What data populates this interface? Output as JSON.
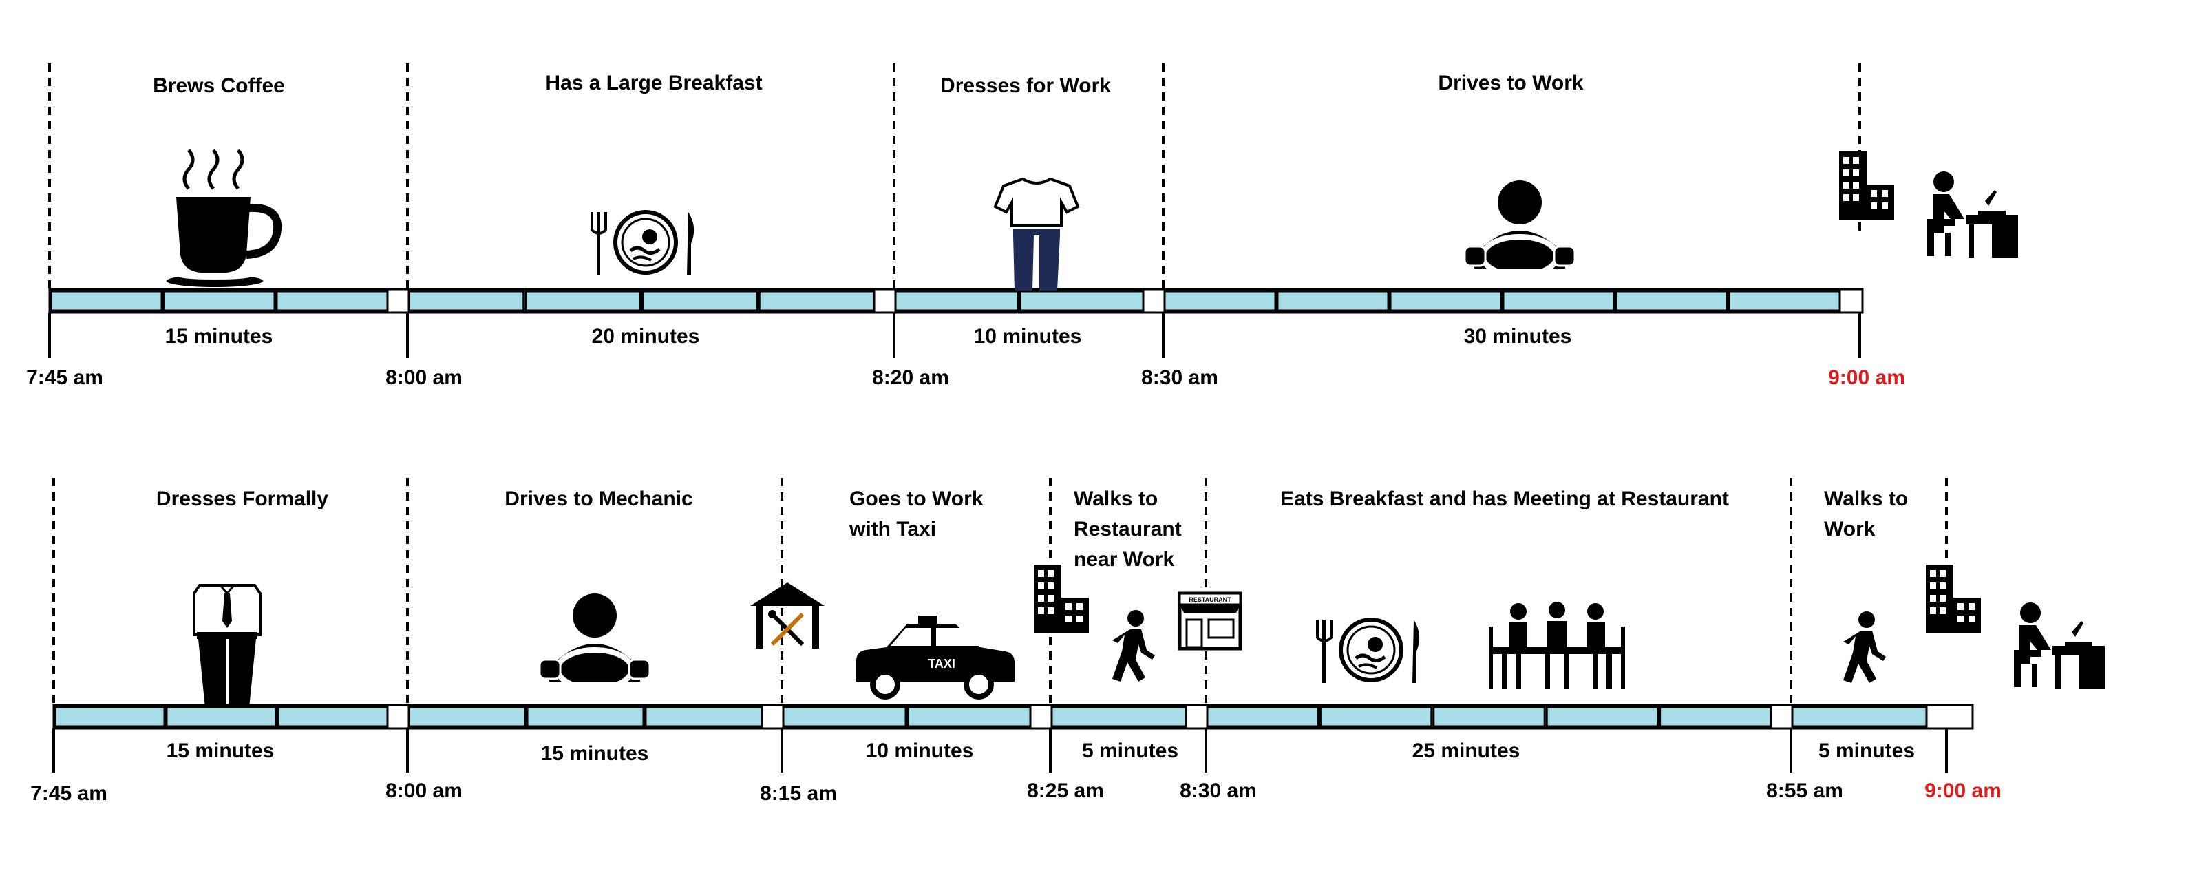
{
  "colors": {
    "bar_fill": "#a8dce6",
    "divider": "#000000",
    "text": "#000000",
    "arrival_time": "#e01b1b"
  },
  "rows": [
    {
      "name": "scenario-1",
      "segments": [
        {
          "label": "Brews Coffee",
          "duration": "15 minutes",
          "start_time": "7:45 am",
          "icon": "coffee-cup-icon",
          "blocks": 3
        },
        {
          "label": "Has a Large Breakfast",
          "duration": "20 minutes",
          "start_time": "8:00 am",
          "icon": "breakfast-plate-icon",
          "blocks": 4
        },
        {
          "label": "Dresses for Work",
          "duration": "10 minutes",
          "start_time": "8:20 am",
          "icon": "casual-clothes-icon",
          "blocks": 2
        },
        {
          "label": "Drives to Work",
          "duration": "30 minutes",
          "start_time": "8:30 am",
          "icon": "driver-icon",
          "blocks": 6
        }
      ],
      "end_time": "9:00 am",
      "end_icons": [
        "office-building-icon",
        "person-at-desk-icon"
      ]
    },
    {
      "name": "scenario-2",
      "segments": [
        {
          "label": "Dresses Formally",
          "duration": "15 minutes",
          "start_time": "7:45 am",
          "icon": "formal-clothes-icon",
          "blocks": 3
        },
        {
          "label": "Drives to Mechanic",
          "duration": "15 minutes",
          "start_time": "8:00 am",
          "icon": "driver-icon",
          "blocks": 3
        },
        {
          "label": "Goes to Work with Taxi",
          "duration": "10 minutes",
          "start_time": "8:15 am",
          "icon": "taxi-icon",
          "blocks": 2
        },
        {
          "label": "Walks to Restaurant near Work",
          "duration": "5 minutes",
          "start_time": "8:25 am",
          "icon": "walking-person-icon",
          "blocks": 1
        },
        {
          "label": "Eats Breakfast and has Meeting at Restaurant",
          "duration": "25 minutes",
          "start_time": "8:30 am",
          "icon": "breakfast-plate-icon",
          "blocks": 5
        },
        {
          "label": "Walks to Work",
          "duration": "5 minutes",
          "start_time": "8:55 am",
          "icon": "walking-person-icon",
          "blocks": 1
        }
      ],
      "end_time": "9:00 am",
      "end_icons": [
        "office-building-icon",
        "person-at-desk-icon"
      ],
      "waypoint_icons": [
        "mechanic-garage-icon",
        "office-building-icon",
        "restaurant-storefront-icon",
        "meeting-table-icon"
      ]
    }
  ]
}
